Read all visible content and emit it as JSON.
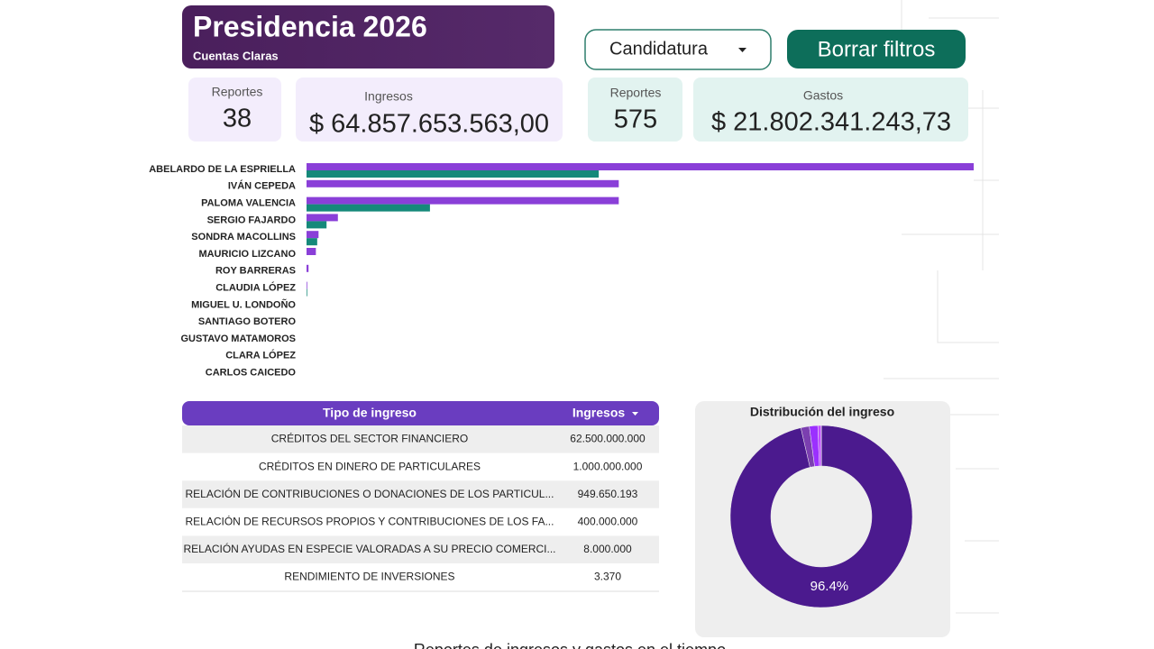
{
  "header": {
    "title": "Presidencia 2026",
    "subtitle": "Cuentas Claras"
  },
  "filters": {
    "dropdown": "Candidatura",
    "button": "Borrar filtros"
  },
  "cards": [
    {
      "label": "Reportes",
      "value": "38"
    },
    {
      "label": "Ingresos",
      "value": "$ 64.857.653.563,00"
    },
    {
      "label": "Reportes",
      "value": "575"
    },
    {
      "label": "Gastos",
      "value": "$ 21.802.341.243,73"
    }
  ],
  "bar_chart": {
    "type": "bar",
    "orientation": "horizontal",
    "categories": [
      "ABELARDO DE LA ESPRIELLA",
      "IVÁN CEPEDA",
      "PALOMA VALENCIA",
      "SERGIO FAJARDO",
      "SONDRA MACOLLINS",
      "MAURICIO LIZCANO",
      "ROY BARRERAS",
      "CLAUDIA LÓPEZ",
      "MIGUEL U. LONDOÑO",
      "SANTIAGO BOTERO",
      "GUSTAVO MATAMOROS",
      "CLARA LÓPEZ",
      "CARLOS CAICEDO"
    ],
    "xlim": [
      0,
      100
    ],
    "series": [
      {
        "color": "#8a3fd8",
        "values": [
          100,
          46.8,
          46.8,
          4.7,
          1.8,
          1.4,
          0.3,
          0.1,
          0,
          0,
          0,
          0,
          0
        ]
      },
      {
        "color": "#15897a",
        "values": [
          43.8,
          0,
          18.5,
          3.0,
          1.6,
          0,
          0,
          0.1,
          0,
          0,
          0,
          0,
          0
        ]
      }
    ]
  },
  "table": {
    "headers": [
      "Tipo de ingreso",
      "Ingresos"
    ],
    "rows": [
      [
        "CRÉDITOS DEL SECTOR FINANCIERO",
        "62.500.000.000"
      ],
      [
        "CRÉDITOS EN DINERO DE PARTICULARES",
        "1.000.000.000"
      ],
      [
        "RELACIÓN DE CONTRIBUCIONES O DONACIONES DE LOS PARTICUL...",
        "949.650.193"
      ],
      [
        "RELACIÓN DE RECURSOS PROPIOS Y CONTRIBUCIONES DE LOS FA...",
        "400.000.000"
      ],
      [
        "RELACIÓN AYUDAS EN ESPECIE VALORADAS A SU PRECIO COMERCI...",
        "8.000.000"
      ],
      [
        "RENDIMIENTO DE INVERSIONES",
        "3.370"
      ]
    ]
  },
  "donut": {
    "type": "pie",
    "title": "Distribución del ingreso",
    "values": [
      96.4,
      1.5,
      1.5,
      0.6,
      0.01
    ],
    "value_labels": [
      "96.4%",
      null,
      null,
      null,
      null
    ],
    "colors": [
      "#4b1a8e",
      "#7b3fb0",
      "#9b30ff",
      "#c04cff",
      "#e070ff"
    ]
  },
  "footer": {
    "title": "Reportes de ingresos y gastos en el tiempo"
  }
}
